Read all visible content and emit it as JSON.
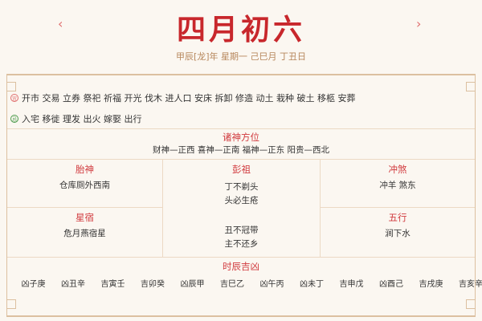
{
  "header": {
    "prev": "‹",
    "next": "›",
    "title": "四月初六",
    "subtitle": "甲辰[龙]年 星期一 己巳月 丁丑日"
  },
  "yi": {
    "icon": "宜",
    "color": "#e07070",
    "items": "开市 交易 立券 祭祀 祈福 开光 伐木 进人口 安床 拆卸 修造 动土 栽种 破土 移柩 安葬"
  },
  "ji": {
    "icon": "忌",
    "color": "#4a9a4a",
    "items": "入宅 移徙 理发 出火 嫁娶 出行"
  },
  "gods": {
    "title": "诸神方位",
    "value": "财神—正西 喜神—正南 福神—正东 阳贵—西北"
  },
  "taishen": {
    "title": "胎神",
    "value": "仓库厕外西南"
  },
  "pengzu": {
    "title": "彭祖",
    "lines": [
      "丁不剃头",
      "头必生疮",
      "丑不冠带",
      "主不还乡"
    ]
  },
  "chongsha": {
    "title": "冲煞",
    "value": "冲羊 煞东"
  },
  "xingsu": {
    "title": "星宿",
    "value": "危月燕宿星"
  },
  "wuxing": {
    "title": "五行",
    "value": "涧下水"
  },
  "hours": {
    "title": "时辰吉凶",
    "items": [
      "庚子凶",
      "辛丑凶",
      "壬寅吉",
      "癸卯吉",
      "甲辰凶",
      "乙巳吉",
      "丙午凶",
      "丁未凶",
      "戊申吉",
      "己酉凶",
      "庚戌吉",
      "辛亥吉"
    ]
  }
}
